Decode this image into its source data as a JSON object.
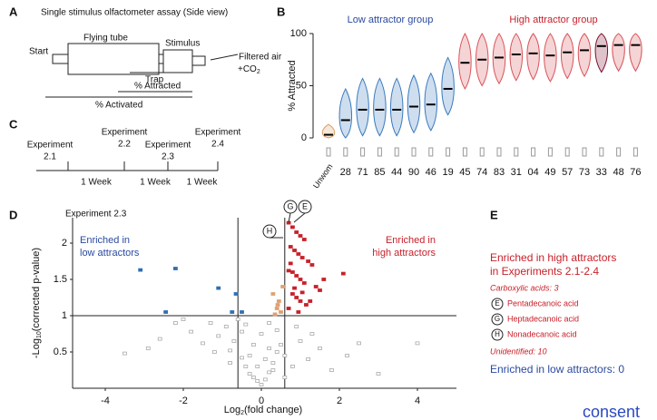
{
  "panels": {
    "a": {
      "letter": "A",
      "title": "Single stimulus olfactometer assay (Side view)",
      "start": "Start",
      "tube": "Flying tube",
      "stimulus": "Stimulus",
      "air": "Filtered air",
      "co2": [
        "+CO",
        "2"
      ],
      "trap": "Trap",
      "attracted": "% Attracted",
      "activated": "% Activated"
    },
    "b": {
      "letter": "B",
      "low": "Low attractor group",
      "high": "High attractor group"
    },
    "c": {
      "letter": "C",
      "experiments": [
        [
          "Experiment",
          "2.1"
        ],
        [
          "Experiment",
          "2.2"
        ],
        [
          "Experiment",
          "2.3"
        ],
        [
          "Experiment",
          "2.4"
        ]
      ],
      "weeks": [
        "1 Week",
        "1 Week",
        "1 Week"
      ]
    },
    "d": {
      "letter": "D",
      "experiment": "Experiment 2.3",
      "low": [
        "Enriched in",
        "low attractors"
      ],
      "high": [
        "Enriched in",
        "high attractors"
      ],
      "annotations": [
        "G",
        "E",
        "H"
      ]
    },
    "e": {
      "letter": "E",
      "heading": [
        "Enriched in high attractors",
        "in Experiments 2.1-2.4"
      ],
      "acids": "Carboxylic acids: 3",
      "compounds": [
        [
          "E",
          "Pentadecanoic acid"
        ],
        [
          "G",
          "Heptadecanoic acid"
        ],
        [
          "H",
          "Nonadecanoic acid"
        ]
      ],
      "unidentified": "Unidentified: 10",
      "low": "Enriched in low attractors: 0"
    }
  },
  "consent": "consent",
  "chart_data": [
    {
      "type": "violin",
      "ylabel": "% Attracted",
      "categories": [
        "Unwom",
        "28",
        "71",
        "85",
        "44",
        "90",
        "46",
        "19",
        "45",
        "74",
        "83",
        "31",
        "04",
        "49",
        "57",
        "73",
        "33",
        "48",
        "76"
      ],
      "values": [
        3,
        17,
        27,
        27,
        27,
        30,
        32,
        47,
        72,
        75,
        77,
        80,
        81,
        79,
        82,
        84,
        88,
        89,
        89
      ],
      "colors": [
        "#d9a066",
        "#3a7abf",
        "#3a7abf",
        "#3a7abf",
        "#3a7abf",
        "#3a7abf",
        "#3a7abf",
        "#3a7abf",
        "#d9545a",
        "#d9545a",
        "#d9545a",
        "#d9545a",
        "#d9545a",
        "#d9545a",
        "#d9545a",
        "#d9545a",
        "#7a0f2e",
        "#d9545a",
        "#d9545a"
      ],
      "ylim": [
        0,
        100
      ],
      "yticks": [
        0,
        50,
        100
      ]
    },
    {
      "type": "scatter",
      "xlabel": [
        "Log",
        "2",
        "(fold change)"
      ],
      "ylabel": [
        "-Log",
        "10",
        "(corrected p-value)"
      ],
      "xlim": [
        -5,
        5
      ],
      "ylim": [
        0,
        2.35
      ],
      "xticks": [
        -4,
        -2,
        0,
        2,
        4
      ],
      "yticks": [
        0.5,
        1,
        1.5,
        2
      ],
      "xthresholds": [
        -0.6,
        0.6
      ],
      "ythreshold": 1,
      "series": [
        {
          "color": "#aaaaaa",
          "x": [
            -3.5,
            -2.9,
            -2.6,
            -2.0,
            -1.8,
            -1.5,
            -1.3,
            -1.1,
            -0.9,
            -0.8,
            -0.7,
            -0.6,
            -0.5,
            -0.4,
            -0.3,
            -0.2,
            -0.1,
            0.0,
            0.1,
            0.2,
            0.3,
            0.4,
            0.5,
            -0.3,
            -0.1,
            0.1,
            0.3,
            -0.2,
            0.0,
            0.2,
            0.4,
            0.6,
            0.8,
            1.0,
            1.2,
            1.5,
            1.8,
            2.2,
            2.5,
            3.0,
            4.0,
            -0.5,
            -0.8,
            -1.2,
            -2.2,
            0.6,
            0.9,
            1.3,
            0.2,
            -0.4
          ],
          "values": [
            0.48,
            0.55,
            0.68,
            0.95,
            0.78,
            0.62,
            0.9,
            0.72,
            0.85,
            0.52,
            0.65,
            0.95,
            0.42,
            0.3,
            0.2,
            0.15,
            0.1,
            0.05,
            0.12,
            0.22,
            0.35,
            0.5,
            0.6,
            0.45,
            0.3,
            0.4,
            0.25,
            0.6,
            0.75,
            0.55,
            0.8,
            0.45,
            0.3,
            0.65,
            0.4,
            0.55,
            0.25,
            0.45,
            0.62,
            0.2,
            0.62,
            0.78,
            0.35,
            0.5,
            0.9,
            0.15,
            0.85,
            0.75,
            0.9,
            0.88
          ]
        },
        {
          "color": "#e0a070",
          "x": [
            0.35,
            0.4,
            0.45,
            0.5,
            0.3,
            0.55,
            0.42
          ],
          "values": [
            1.02,
            1.1,
            1.2,
            1.05,
            1.3,
            1.4,
            1.15
          ]
        },
        {
          "color": "#2f6fb5",
          "x": [
            -3.1,
            -2.2,
            -1.1,
            -2.45,
            -0.75,
            -0.5,
            -0.65
          ],
          "values": [
            1.63,
            1.65,
            1.38,
            1.05,
            1.05,
            1.05,
            1.3
          ]
        },
        {
          "color": "#c8202a",
          "x": [
            0.7,
            0.8,
            0.9,
            1.0,
            1.1,
            0.75,
            0.85,
            0.95,
            1.05,
            1.2,
            1.3,
            0.7,
            0.8,
            0.9,
            1.0,
            1.1,
            1.4,
            1.5,
            1.6,
            2.1,
            0.8,
            0.9,
            1.0,
            1.15,
            0.7,
            0.95,
            1.25,
            0.85,
            1.05,
            0.75
          ],
          "values": [
            2.28,
            2.22,
            2.15,
            2.1,
            2.05,
            1.95,
            1.9,
            1.85,
            1.8,
            1.75,
            1.7,
            1.62,
            1.6,
            1.55,
            1.5,
            1.45,
            1.4,
            1.35,
            1.5,
            1.58,
            1.3,
            1.25,
            1.2,
            1.15,
            1.1,
            1.05,
            1.2,
            1.38,
            1.32,
            1.72
          ]
        }
      ]
    }
  ]
}
